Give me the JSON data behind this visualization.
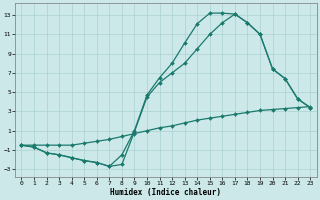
{
  "xlabel": "Humidex (Indice chaleur)",
  "bg_color": "#cce8e8",
  "line_color": "#1a7a6e",
  "xlim": [
    -0.5,
    23.5
  ],
  "ylim": [
    -3.8,
    14.2
  ],
  "xticks": [
    0,
    1,
    2,
    3,
    4,
    5,
    6,
    7,
    8,
    9,
    10,
    11,
    12,
    13,
    14,
    15,
    16,
    17,
    18,
    19,
    20,
    21,
    22,
    23
  ],
  "yticks": [
    -3,
    -1,
    1,
    3,
    5,
    7,
    9,
    11,
    13
  ],
  "grid_color": "#aad0d0",
  "line1_x": [
    0,
    1,
    2,
    3,
    4,
    5,
    6,
    7,
    8,
    9,
    10,
    11,
    12,
    13,
    14,
    15,
    16,
    17,
    18,
    19,
    20,
    21,
    22,
    23
  ],
  "line1_y": [
    -0.5,
    -0.5,
    -0.5,
    -0.5,
    -0.5,
    -0.3,
    -0.1,
    0.1,
    0.4,
    0.7,
    1.0,
    1.3,
    1.5,
    1.8,
    2.1,
    2.3,
    2.5,
    2.7,
    2.9,
    3.1,
    3.2,
    3.3,
    3.4,
    3.5
  ],
  "line2_x": [
    0,
    1,
    2,
    3,
    4,
    5,
    6,
    7,
    8,
    9,
    10,
    11,
    12,
    13,
    14,
    15,
    16,
    17,
    18,
    19,
    20,
    21,
    22,
    23
  ],
  "line2_y": [
    -0.5,
    -0.7,
    -1.3,
    -1.5,
    -1.8,
    -2.1,
    -2.3,
    -2.7,
    -2.5,
    0.9,
    4.5,
    6.0,
    7.0,
    8.0,
    9.5,
    11.0,
    12.2,
    13.1,
    12.2,
    11.0,
    7.4,
    6.4,
    4.3,
    3.4
  ],
  "line3_x": [
    0,
    1,
    2,
    3,
    4,
    5,
    6,
    7,
    8,
    9,
    10,
    11,
    12,
    13,
    14,
    15,
    16,
    17,
    18,
    19,
    20,
    21,
    22,
    23
  ],
  "line3_y": [
    -0.5,
    -0.7,
    -1.3,
    -1.5,
    -1.8,
    -2.1,
    -2.3,
    -2.7,
    -1.5,
    1.0,
    4.7,
    6.5,
    8.0,
    10.1,
    12.1,
    13.2,
    13.2,
    13.1,
    12.2,
    11.0,
    7.4,
    6.4,
    4.3,
    3.4
  ]
}
